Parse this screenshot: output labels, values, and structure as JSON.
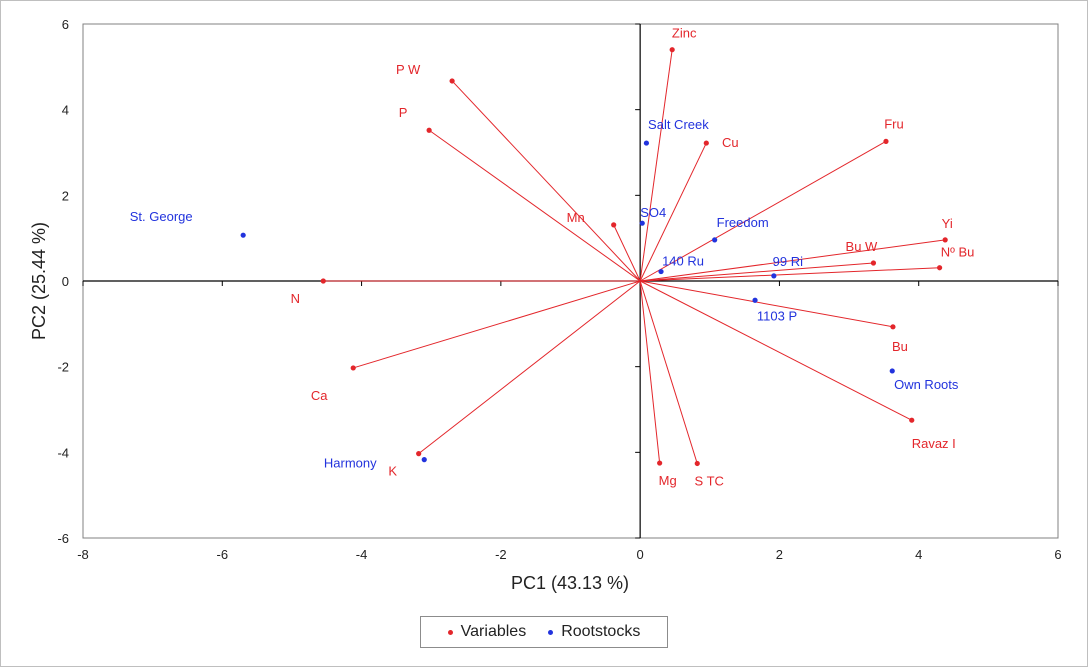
{
  "chart_data": {
    "type": "scatter",
    "subtype": "pca-biplot",
    "xlabel": "PC1 (43.13 %)",
    "ylabel": "PC2 (25.44 %)",
    "xlim": [
      -8,
      6
    ],
    "ylim": [
      -6,
      6
    ],
    "x_ticks": [
      "-8",
      "-6",
      "-4",
      "-2",
      "0",
      "2",
      "4",
      "6"
    ],
    "y_ticks": [
      "-6",
      "-4",
      "-2",
      "0",
      "2",
      "4",
      "6"
    ],
    "grid": false,
    "legend_position": "bottom",
    "series": [
      {
        "name": "Variables",
        "color": "#e3262b",
        "vectors_from_origin": true,
        "points": [
          {
            "label": "Zinc",
            "x": 0.46,
            "y": 5.4
          },
          {
            "label": "P W",
            "x": -2.7,
            "y": 4.67
          },
          {
            "label": "P",
            "x": -3.03,
            "y": 3.52
          },
          {
            "label": "Cu",
            "x": 0.95,
            "y": 3.22
          },
          {
            "label": "Fru",
            "x": 3.53,
            "y": 3.26
          },
          {
            "label": "Mn",
            "x": -0.38,
            "y": 1.31
          },
          {
            "label": "Yi",
            "x": 4.38,
            "y": 0.96
          },
          {
            "label": "Bu W",
            "x": 3.35,
            "y": 0.42
          },
          {
            "label": "Nº Bu",
            "x": 4.3,
            "y": 0.31
          },
          {
            "label": "N",
            "x": -4.55,
            "y": 0.0
          },
          {
            "label": "Bu",
            "x": 3.63,
            "y": -1.07
          },
          {
            "label": "Ca",
            "x": -4.12,
            "y": -2.03
          },
          {
            "label": "Ravaz I",
            "x": 3.9,
            "y": -3.25
          },
          {
            "label": "K",
            "x": -3.18,
            "y": -4.03
          },
          {
            "label": "Mg",
            "x": 0.28,
            "y": -4.25
          },
          {
            "label": "S TC",
            "x": 0.82,
            "y": -4.26
          }
        ]
      },
      {
        "name": "Rootstocks",
        "color": "#2233dd",
        "vectors_from_origin": false,
        "points": [
          {
            "label": "Salt Creek",
            "x": 0.09,
            "y": 3.22
          },
          {
            "label": "St. George",
            "x": -5.7,
            "y": 1.07
          },
          {
            "label": "SO4",
            "x": 0.03,
            "y": 1.35
          },
          {
            "label": "Freedom",
            "x": 1.07,
            "y": 0.96
          },
          {
            "label": "140 Ru",
            "x": 0.3,
            "y": 0.22
          },
          {
            "label": "99 Ri",
            "x": 1.92,
            "y": 0.12
          },
          {
            "label": "1103 P",
            "x": 1.65,
            "y": -0.45
          },
          {
            "label": "Own Roots",
            "x": 3.62,
            "y": -2.1
          },
          {
            "label": "Harmony",
            "x": -3.1,
            "y": -4.17
          }
        ]
      }
    ]
  }
}
